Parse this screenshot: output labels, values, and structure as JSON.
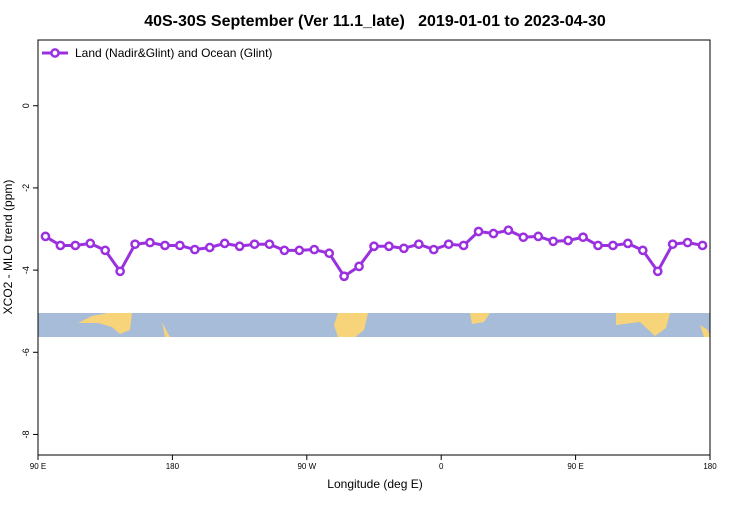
{
  "chart_data": {
    "type": "line",
    "title": "40S-30S September (Ver 11.1_late)   2019-01-01 to 2023-04-30",
    "xlabel": "Longitude (deg E)",
    "ylabel": "XCO2 - MLO trend (ppm)",
    "x": [
      95,
      105,
      115,
      125,
      135,
      145,
      155,
      165,
      175,
      185,
      195,
      205,
      215,
      225,
      235,
      245,
      255,
      265,
      275,
      285,
      295,
      305,
      315,
      325,
      335,
      345,
      355,
      365,
      375,
      385,
      395,
      405,
      415,
      425,
      435,
      445,
      455,
      465,
      475,
      485,
      495,
      505,
      515,
      525,
      535
    ],
    "series": [
      {
        "name": "Land (Nadir&Glint) and Ocean (Glint)",
        "color": "#9b30e0",
        "values": [
          -3.18,
          -3.4,
          -3.4,
          -3.35,
          -3.52,
          -4.03,
          -3.37,
          -3.33,
          -3.4,
          -3.4,
          -3.5,
          -3.45,
          -3.35,
          -3.42,
          -3.37,
          -3.37,
          -3.52,
          -3.52,
          -3.5,
          -3.59,
          -4.15,
          -3.91,
          -3.42,
          -3.42,
          -3.47,
          -3.37,
          -3.5,
          -3.37,
          -3.4,
          -3.06,
          -3.11,
          -3.03,
          -3.2,
          -3.18,
          -3.3,
          -3.28,
          -3.2,
          -3.4,
          -3.4,
          -3.35,
          -3.52,
          -4.03,
          -3.37,
          -3.33,
          -3.4
        ]
      }
    ],
    "xlim": [
      90,
      540
    ],
    "xticks": [
      {
        "value": 90,
        "label": "90 E"
      },
      {
        "value": 180,
        "label": "180"
      },
      {
        "value": 270,
        "label": "90 W"
      },
      {
        "value": 360,
        "label": "0"
      },
      {
        "value": 450,
        "label": "90 E"
      },
      {
        "value": 540,
        "label": "180"
      }
    ],
    "ylim": [
      -8.5,
      1.6
    ],
    "yticks": [
      0,
      -2,
      -4,
      -6,
      -8
    ],
    "legend": "upper left"
  }
}
